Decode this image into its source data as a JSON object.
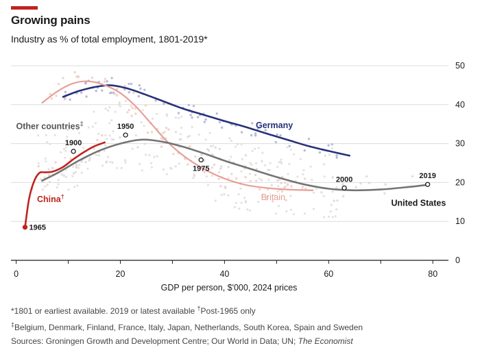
{
  "header": {
    "title": "Growing pains",
    "subtitle": "Industry as % of total employment, 1801-2019*"
  },
  "footnotes": {
    "line1_a": "*1801 or earliest available. 2019 or latest available ",
    "line1_dagger": "†",
    "line1_b": "Post-1965 only",
    "line2_dagger": "‡",
    "line2": "Belgium, Denmark, Finland, France, Italy, Japan, Netherlands, South Korea, Spain and Sweden",
    "line3_a": "Sources: Groningen Growth and Development Centre; Our World in Data; UN; ",
    "line3_b": "The Economist"
  },
  "colors": {
    "germany": "#27307a",
    "britain": "#e79f97",
    "china": "#c0231e",
    "us": "#747474",
    "other": "#8e8e8e",
    "scatter_warm": "#f3c9c2",
    "scatter_grey": "#dcd8d3",
    "scatter_blue": "#a9b1cf",
    "grid": "#dcdcdc",
    "axis": "#1a1a1a"
  },
  "chart_data": {
    "type": "line",
    "title": "Growing pains",
    "xlabel": "GDP per person, $'000, 2024 prices",
    "ylabel": "Industry as % of total employment",
    "xlim": [
      -1,
      83
    ],
    "ylim": [
      0,
      50
    ],
    "x_ticks": [
      0,
      20,
      40,
      60,
      80
    ],
    "y_ticks": [
      0,
      10,
      20,
      30,
      40,
      50
    ],
    "series": [
      {
        "name": "Germany",
        "label_xy": [
          46,
          34
        ],
        "x": [
          9,
          12,
          15,
          18,
          21,
          24,
          28,
          32,
          36,
          40,
          44,
          48,
          52,
          56,
          60,
          64
        ],
        "y": [
          42,
          43.5,
          44.5,
          45,
          44.3,
          43,
          41,
          39,
          37.4,
          35.8,
          34.3,
          32.6,
          31,
          29.4,
          28.1,
          26.9
        ]
      },
      {
        "name": "Britain",
        "label_xy": [
          47,
          15.5
        ],
        "x": [
          5,
          8,
          11,
          14,
          17,
          20,
          23,
          26,
          29,
          32,
          36,
          40,
          44,
          48,
          52,
          57
        ],
        "y": [
          40.5,
          43.5,
          45.5,
          46,
          45,
          43,
          39.5,
          35,
          30.5,
          27,
          23.5,
          21,
          19.4,
          18.6,
          18.2,
          18
        ]
      },
      {
        "name": "United States",
        "label_xy": [
          72,
          14
        ],
        "x": [
          5,
          8,
          12,
          16,
          20,
          24,
          28,
          32,
          36,
          40,
          45,
          50,
          55,
          60,
          65,
          70,
          75,
          79
        ],
        "y": [
          20.5,
          22.5,
          25.6,
          28.2,
          30,
          31,
          30.5,
          29.2,
          27.5,
          25.6,
          23.5,
          21.4,
          19.6,
          18.4,
          18,
          18.2,
          18.8,
          19.4
        ]
      },
      {
        "name": "China",
        "label_xy": [
          4,
          15
        ],
        "x": [
          1.7,
          2.5,
          3.5,
          4.5,
          5.5,
          7,
          9,
          11,
          13,
          15,
          17
        ],
        "y": [
          8.5,
          16,
          20.5,
          22.5,
          22.6,
          22.8,
          24,
          26,
          27.8,
          29.3,
          30.3
        ]
      }
    ],
    "annotations": [
      {
        "label": "1965",
        "x": 1.7,
        "y": 8.5
      },
      {
        "label": "1900",
        "x": 11,
        "y": 28
      },
      {
        "label": "1950",
        "x": 21,
        "y": 32.2
      },
      {
        "label": "1975",
        "x": 35.5,
        "y": 25.8
      },
      {
        "label": "2000",
        "x": 63,
        "y": 18.6
      },
      {
        "label": "2019",
        "x": 79,
        "y": 19.5
      }
    ],
    "other_label": {
      "text": "Other countries",
      "dagger": "‡",
      "x": 7.5,
      "y": 33.7
    },
    "china_dagger": "†"
  }
}
